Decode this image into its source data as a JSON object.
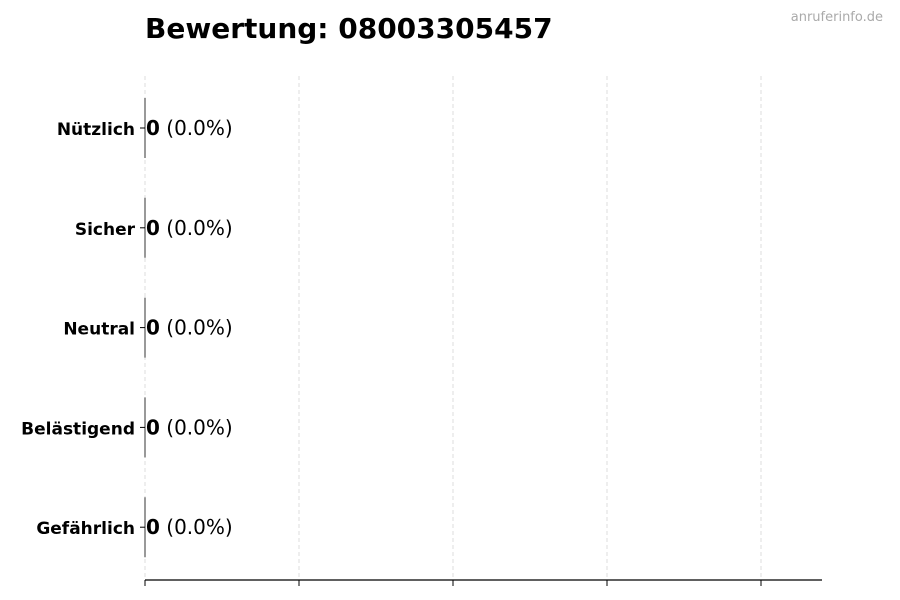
{
  "chart_data": {
    "type": "bar",
    "orientation": "horizontal",
    "title": "Bewertung: 08003305457",
    "watermark": "anruferinfo.de",
    "categories": [
      "Nützlich",
      "Sicher",
      "Neutral",
      "Belästigend",
      "Gefährlich"
    ],
    "values": [
      0,
      0,
      0,
      0,
      0
    ],
    "data_labels": [
      {
        "count": "0",
        "percent": "(0.0%)"
      },
      {
        "count": "0",
        "percent": "(0.0%)"
      },
      {
        "count": "0",
        "percent": "(0.0%)"
      },
      {
        "count": "0",
        "percent": "(0.0%)"
      },
      {
        "count": "0",
        "percent": "(0.0%)"
      }
    ],
    "xlabel": "",
    "ylabel": "",
    "grid": "x, dashed",
    "x_tick_labels_shown": false,
    "colors": {
      "grid": "#dddddd",
      "axis": "#000000",
      "bar_edge": "#333333",
      "watermark": "#aaaaaa"
    }
  }
}
